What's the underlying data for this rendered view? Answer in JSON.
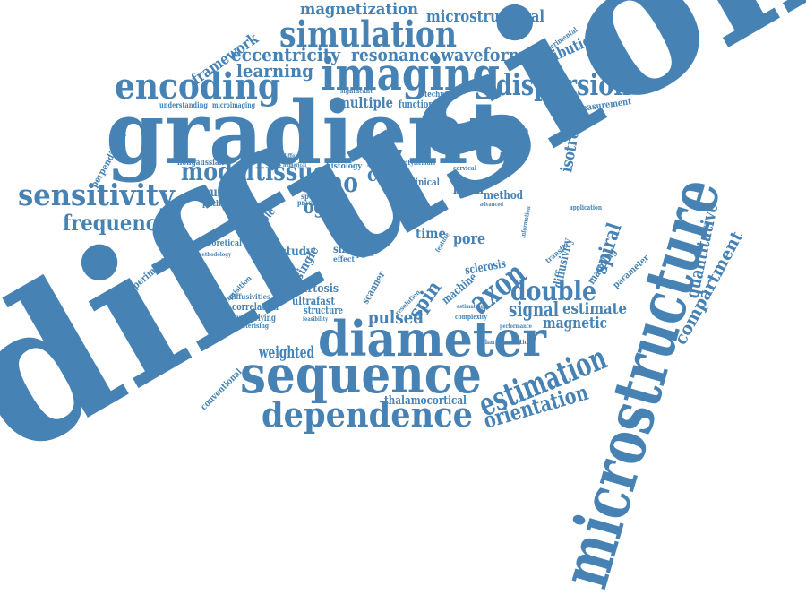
{
  "color": "#4682b4",
  "words": {
    "diffusion": "diffusion",
    "gradient": "gradient",
    "microstructure": "microstructure",
    "sequence": "sequence",
    "diameter": "diameter",
    "imaging": "imaging",
    "simulation": "simulation",
    "encoding": "encoding",
    "dependence": "dependence",
    "sensitivity": "sensitivity",
    "dispersion": "dispersion",
    "estimation": "estimation",
    "orientation": "orientation",
    "axon": "axon",
    "double": "double",
    "echo": "echo",
    "tissue": "tissue",
    "model": "model",
    "frequency": "frequency",
    "magnetization": "magnetization",
    "microstructural": "microstructural",
    "resonance": "resonance",
    "waveform": "waveform",
    "eccentricity": "eccentricity",
    "learning": "learning",
    "framework": "framework",
    "distribution": "distribution",
    "spiral": "spiral",
    "quantitative": "quantitative",
    "compartment": "compartment",
    "signal": "signal",
    "estimate": "estimate",
    "magnetic": "magnetic",
    "pulsed": "pulsed",
    "weighted": "weighted",
    "thalamocortical": "thalamocortical",
    "spin": "spin",
    "isotropic": "isotropic",
    "approach": "approach",
    "cord": "cord",
    "ogse": "ogse",
    "accurate": "accurate",
    "brain": "brain",
    "method": "method",
    "multiple": "multiple",
    "pore": "pore",
    "time": "time",
    "study": "study",
    "single": "single",
    "kurtosis": "kurtosis",
    "ultrafast": "ultrafast",
    "structure": "structure",
    "correlation": "correlation",
    "underlying": "underlying",
    "conventional": "conventional",
    "experiment": "experiment",
    "perpendicular": "perpendicular",
    "nongaussian": "nongaussian",
    "pathway": "pathway",
    "viable": "viable",
    "theoretical": "theoretical",
    "diffusivity": "diffusivity",
    "mapping": "mapping",
    "parameter": "parameter",
    "sclerosis": "sclerosis",
    "scanner": "scanner",
    "machine": "machine",
    "histology": "histology",
    "clinical": "clinical",
    "functional": "functional",
    "technique": "technique",
    "measurement": "measurement",
    "pathology": "pathology",
    "optimised": "optimised",
    "experimental": "experimental",
    "understanding": "understanding",
    "microimaging": "microimaging",
    "significant": "significant",
    "application": "application",
    "transfer": "transfer",
    "acquisition": "acquisition",
    "diffusivities": "diffusivities",
    "characterising": "characterising",
    "result": "result",
    "size": "size",
    "more": "more",
    "effect": "effect",
    "pgse": "pgse",
    "practical": "practical",
    "specific": "specific",
    "provide": "provide",
    "activity": "activity",
    "formula": "formula",
    "cervical": "cervical",
    "advanced": "advanced",
    "characterisation": "characterisation",
    "complexity": "complexity",
    "performance": "performance",
    "resolution": "resolution",
    "feasibility": "feasibility",
    "methodology": "methodology",
    "estimating": "estimating",
    "radius": "radius",
    "feature": "feature",
    "information": "information",
    "peripheral": "peripheral",
    "different": "different",
    "numerical": "numerical",
    "specificity": "specificity"
  }
}
